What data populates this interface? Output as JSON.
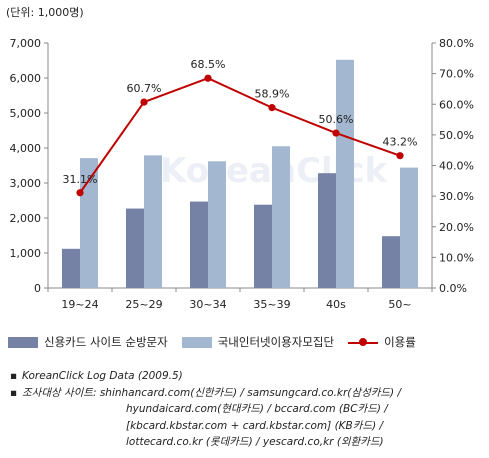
{
  "chart_data": {
    "type": "bar",
    "unit_label": "(단위: 1,000명)",
    "categories": [
      "19~24",
      "25~29",
      "30~34",
      "35~39",
      "40s",
      "50~"
    ],
    "series": [
      {
        "name": "신용카드 사이트 순방문자",
        "kind": "bar",
        "axis": "left",
        "color": "#7681a6",
        "values": [
          1120,
          2270,
          2470,
          2380,
          3280,
          1480
        ]
      },
      {
        "name": "국내인터넷이용자모집단",
        "kind": "bar",
        "axis": "left",
        "color": "#a3b8d0",
        "values": [
          3710,
          3790,
          3620,
          4050,
          6520,
          3440
        ]
      },
      {
        "name": "이용률",
        "kind": "line",
        "axis": "right",
        "color": "#c00000",
        "values": [
          31.1,
          60.7,
          68.5,
          58.9,
          50.6,
          43.2
        ],
        "labels": [
          "31.1%",
          "60.7%",
          "68.5%",
          "58.9%",
          "50.6%",
          "43.2%"
        ]
      }
    ],
    "y_left": {
      "ylim": [
        0,
        7000
      ],
      "ticks": [
        "0",
        "1,000",
        "2,000",
        "3,000",
        "4,000",
        "5,000",
        "6,000",
        "7,000"
      ]
    },
    "y_right": {
      "ylim": [
        0,
        80
      ],
      "ticks": [
        "0.0%",
        "10.0%",
        "20.0%",
        "30.0%",
        "40.0%",
        "50.0%",
        "60.0%",
        "70.0%",
        "80.0%"
      ]
    },
    "grid": false,
    "legend_position": "bottom"
  },
  "watermark": "KoreanClick",
  "notes": [
    {
      "text": "KoreanClick Log Data (2009.5)"
    },
    {
      "text": "조사대상 사이트: shinhancard.com(신한카드) / samsungcard.co.kr(삼성카드) /"
    },
    {
      "text": "hyundaicard.com(현대카드) / bccard.com (BC카드) /",
      "indent": true
    },
    {
      "text": "[kbcard.kbstar.com + card.kbstar.com] (KB카드) /",
      "indent": true
    },
    {
      "text": "lottecard.co.kr (롯데카드) / yescard.co,kr (외환카드)",
      "indent": true
    }
  ]
}
